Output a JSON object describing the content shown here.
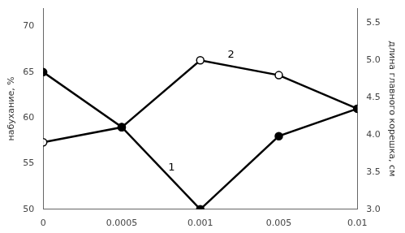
{
  "chart_data": {
    "type": "line",
    "categories": [
      "0",
      "0.0005",
      "0.001",
      "0.005",
      "0.01"
    ],
    "series": [
      {
        "name": "1",
        "color": "black",
        "marker": "circle",
        "values": [
          65,
          59,
          50,
          58,
          61
        ]
      },
      {
        "name": "2",
        "color": "black",
        "marker": "open_circle",
        "axis": "y2",
        "values": [
          3.9,
          4.1,
          5.0,
          4.8,
          4.35
        ]
      }
    ],
    "ylabel": "набухание, %",
    "y2label": "длина главного корешка, см",
    "ylim": [
      50,
      72
    ],
    "yticks": [
      50,
      55,
      60,
      65,
      70
    ],
    "y2lim": [
      3.0,
      5.7
    ],
    "y2ticks": [
      {
        "value": 3.0,
        "label": "3.0"
      },
      3.5,
      {
        "value": 4.0,
        "label": "4.0"
      },
      4.5,
      {
        "value": 5.0,
        "label": "5.0"
      },
      5.5
    ],
    "grid": false
  }
}
